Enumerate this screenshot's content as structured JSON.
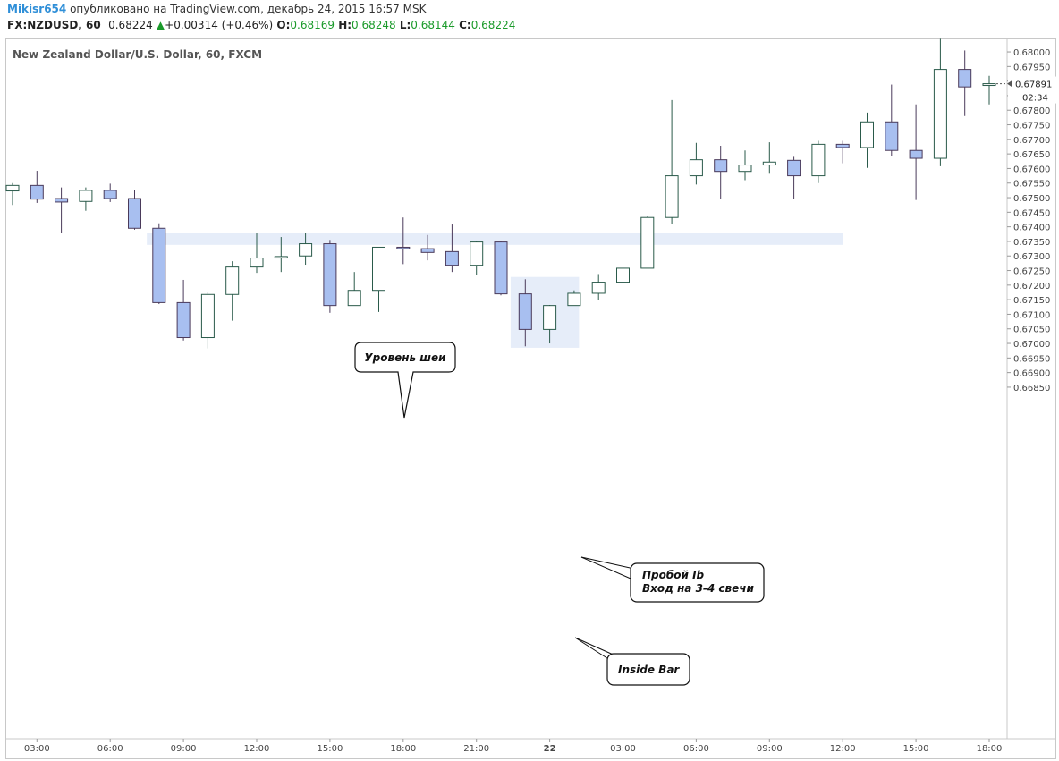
{
  "header": {
    "user": "Mikisr654",
    "published": "опубликовано на TradingView.com, декабрь 24, 2015 16:57 MSK",
    "symbol": "FX:NZDUSD, 60",
    "last": "0.68224",
    "change": "+0.00314 (+0.46%)",
    "o_label": "O:",
    "o": "0.68169",
    "h_label": "H:",
    "h": "0.68248",
    "l_label": "L:",
    "l": "0.68144",
    "c_label": "C:",
    "c": "0.68224"
  },
  "colors": {
    "bull_fill": "#ffffff",
    "bear_fill": "#a8bff0",
    "candle_border": "#2a5a4a",
    "bear_border": "#4a3a5a",
    "highlight": "#e6edf9"
  },
  "chart_data": {
    "type": "candlestick",
    "title": "New Zealand Dollar/U.S. Dollar, 60, FXCM",
    "ylim": [
      0.6681,
      0.6804
    ],
    "y_ticks": [
      "0.68000",
      "0.67950",
      "0.67900",
      "0.67850",
      "0.67800",
      "0.67750",
      "0.67700",
      "0.67650",
      "0.67600",
      "0.67550",
      "0.67500",
      "0.67450",
      "0.67400",
      "0.67350",
      "0.67300",
      "0.67250",
      "0.67200",
      "0.67150",
      "0.67100",
      "0.67050",
      "0.67000",
      "0.66950",
      "0.66900",
      "0.66850"
    ],
    "x_ticks": [
      {
        "label": "03:00",
        "i": 1
      },
      {
        "label": "06:00",
        "i": 4
      },
      {
        "label": "09:00",
        "i": 7
      },
      {
        "label": "12:00",
        "i": 10
      },
      {
        "label": "15:00",
        "i": 13
      },
      {
        "label": "18:00",
        "i": 16
      },
      {
        "label": "21:00",
        "i": 19
      },
      {
        "label": "22",
        "i": 22,
        "bold": true
      },
      {
        "label": "03:00",
        "i": 25
      },
      {
        "label": "06:00",
        "i": 28
      },
      {
        "label": "09:00",
        "i": 31
      },
      {
        "label": "12:00",
        "i": 34
      },
      {
        "label": "15:00",
        "i": 37
      },
      {
        "label": "18:00",
        "i": 40
      }
    ],
    "candles": [
      {
        "o": 0.67523,
        "h": 0.6755,
        "l": 0.67475,
        "c": 0.67542
      },
      {
        "o": 0.67542,
        "h": 0.67592,
        "l": 0.67482,
        "c": 0.67495
      },
      {
        "o": 0.67497,
        "h": 0.67535,
        "l": 0.6738,
        "c": 0.67485
      },
      {
        "o": 0.67487,
        "h": 0.67535,
        "l": 0.67455,
        "c": 0.67525
      },
      {
        "o": 0.67525,
        "h": 0.67548,
        "l": 0.67485,
        "c": 0.67497
      },
      {
        "o": 0.67497,
        "h": 0.67525,
        "l": 0.6739,
        "c": 0.67395
      },
      {
        "o": 0.67395,
        "h": 0.67412,
        "l": 0.67135,
        "c": 0.6714
      },
      {
        "o": 0.6714,
        "h": 0.67218,
        "l": 0.6701,
        "c": 0.6702
      },
      {
        "o": 0.6702,
        "h": 0.67178,
        "l": 0.66983,
        "c": 0.67168
      },
      {
        "o": 0.67168,
        "h": 0.67282,
        "l": 0.67078,
        "c": 0.67262
      },
      {
        "o": 0.67262,
        "h": 0.6738,
        "l": 0.67242,
        "c": 0.67293
      },
      {
        "o": 0.67293,
        "h": 0.67365,
        "l": 0.67245,
        "c": 0.67298
      },
      {
        "o": 0.673,
        "h": 0.67378,
        "l": 0.6727,
        "c": 0.67342
      },
      {
        "o": 0.67342,
        "h": 0.67355,
        "l": 0.67105,
        "c": 0.6713
      },
      {
        "o": 0.6713,
        "h": 0.67245,
        "l": 0.6713,
        "c": 0.67182
      },
      {
        "o": 0.67182,
        "h": 0.6733,
        "l": 0.67108,
        "c": 0.6733
      },
      {
        "o": 0.6733,
        "h": 0.67432,
        "l": 0.67272,
        "c": 0.67325
      },
      {
        "o": 0.67325,
        "h": 0.67372,
        "l": 0.67285,
        "c": 0.67312
      },
      {
        "o": 0.67315,
        "h": 0.67408,
        "l": 0.67245,
        "c": 0.67268
      },
      {
        "o": 0.67268,
        "h": 0.6735,
        "l": 0.67235,
        "c": 0.67348
      },
      {
        "o": 0.67348,
        "h": 0.6735,
        "l": 0.67165,
        "c": 0.6717
      },
      {
        "o": 0.6717,
        "h": 0.6722,
        "l": 0.6699,
        "c": 0.67048
      },
      {
        "o": 0.67048,
        "h": 0.67132,
        "l": 0.67,
        "c": 0.6713
      },
      {
        "o": 0.6713,
        "h": 0.67182,
        "l": 0.6713,
        "c": 0.67172
      },
      {
        "o": 0.67172,
        "h": 0.67238,
        "l": 0.67148,
        "c": 0.6721
      },
      {
        "o": 0.6721,
        "h": 0.67318,
        "l": 0.67138,
        "c": 0.67258
      },
      {
        "o": 0.67258,
        "h": 0.67435,
        "l": 0.67258,
        "c": 0.67432
      },
      {
        "o": 0.67432,
        "h": 0.67835,
        "l": 0.67408,
        "c": 0.67575
      },
      {
        "o": 0.67575,
        "h": 0.67688,
        "l": 0.67545,
        "c": 0.6763
      },
      {
        "o": 0.6763,
        "h": 0.67678,
        "l": 0.67495,
        "c": 0.6759
      },
      {
        "o": 0.6759,
        "h": 0.67662,
        "l": 0.6756,
        "c": 0.67612
      },
      {
        "o": 0.67612,
        "h": 0.6769,
        "l": 0.67582,
        "c": 0.67622
      },
      {
        "o": 0.67628,
        "h": 0.6764,
        "l": 0.67495,
        "c": 0.67575
      },
      {
        "o": 0.67575,
        "h": 0.67695,
        "l": 0.6755,
        "c": 0.67683
      },
      {
        "o": 0.67683,
        "h": 0.67695,
        "l": 0.67618,
        "c": 0.67672
      },
      {
        "o": 0.67672,
        "h": 0.67792,
        "l": 0.67602,
        "c": 0.6776
      },
      {
        "o": 0.6776,
        "h": 0.67888,
        "l": 0.67642,
        "c": 0.67662
      },
      {
        "o": 0.67662,
        "h": 0.6782,
        "l": 0.67492,
        "c": 0.67635
      },
      {
        "o": 0.67635,
        "h": 0.68045,
        "l": 0.67608,
        "c": 0.6794
      },
      {
        "o": 0.6794,
        "h": 0.68005,
        "l": 0.6778,
        "c": 0.6788
      },
      {
        "o": 0.67885,
        "h": 0.67918,
        "l": 0.6782,
        "c": 0.67891
      }
    ],
    "last_price": "0.67891",
    "countdown": "02:34",
    "zones": [
      {
        "from_i": 5.5,
        "to_i": 34,
        "top": 0.67378,
        "bottom": 0.67338
      },
      {
        "from_i": 20.4,
        "to_i": 23.2,
        "top": 0.67228,
        "bottom": 0.66985
      }
    ],
    "annotations": [
      {
        "text": "Уровень шеи"
      },
      {
        "text_line1": "Пробой Ib",
        "text_line2": "Вход на 3-4 свечи"
      },
      {
        "text": "Inside Bar"
      }
    ]
  }
}
